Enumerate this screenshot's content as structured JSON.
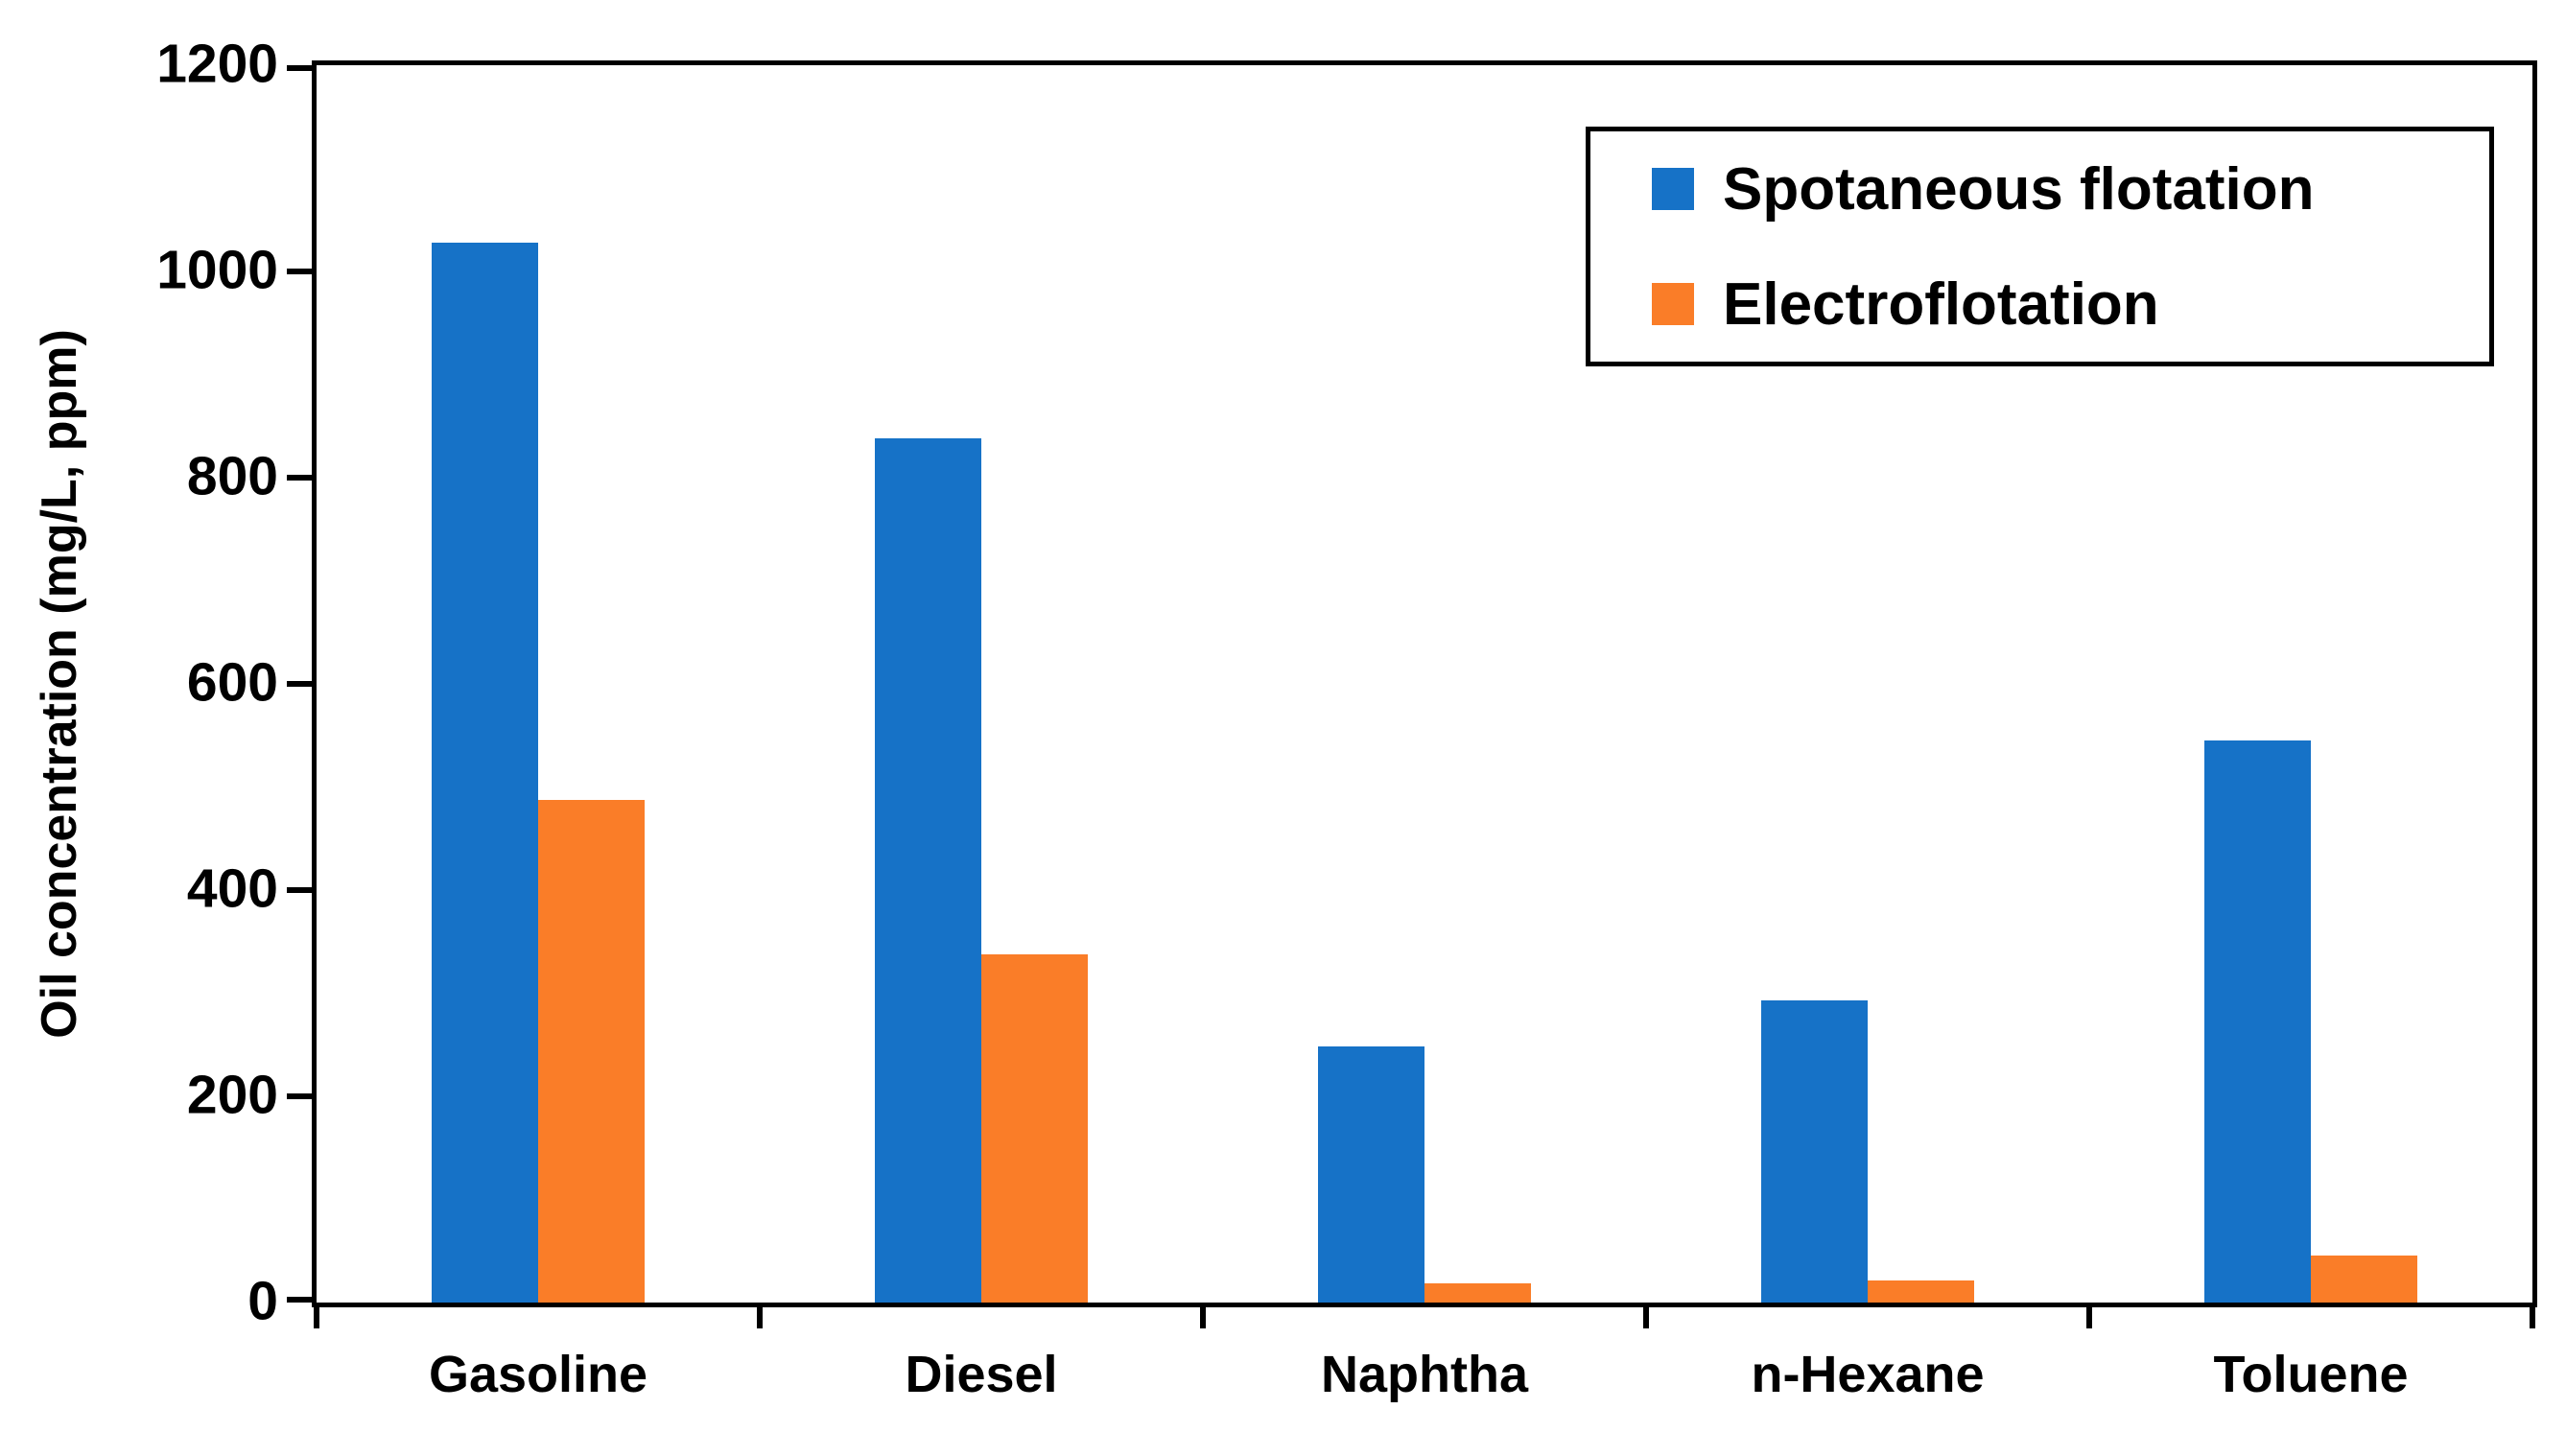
{
  "chart_data": {
    "type": "bar",
    "categories": [
      "Gasoline",
      "Diesel",
      "Naphtha",
      "n-Hexane",
      "Toluene"
    ],
    "series": [
      {
        "name": "Spotaneous flotation",
        "color": "#1672C7",
        "values": [
          1028,
          838,
          248,
          293,
          545
        ]
      },
      {
        "name": "Electroflotation",
        "color": "#FA7D28",
        "values": [
          487,
          338,
          19,
          21,
          46
        ]
      }
    ],
    "title": "",
    "xlabel": "",
    "ylabel": "Oil concentration (mg/L, ppm)",
    "ylim": [
      0,
      1200
    ],
    "yticks": [
      0,
      200,
      400,
      600,
      800,
      1000,
      1200
    ],
    "grid": false,
    "legend_position": "top-right",
    "axis_color": "#000000",
    "background_color": "#FFFFFF"
  }
}
